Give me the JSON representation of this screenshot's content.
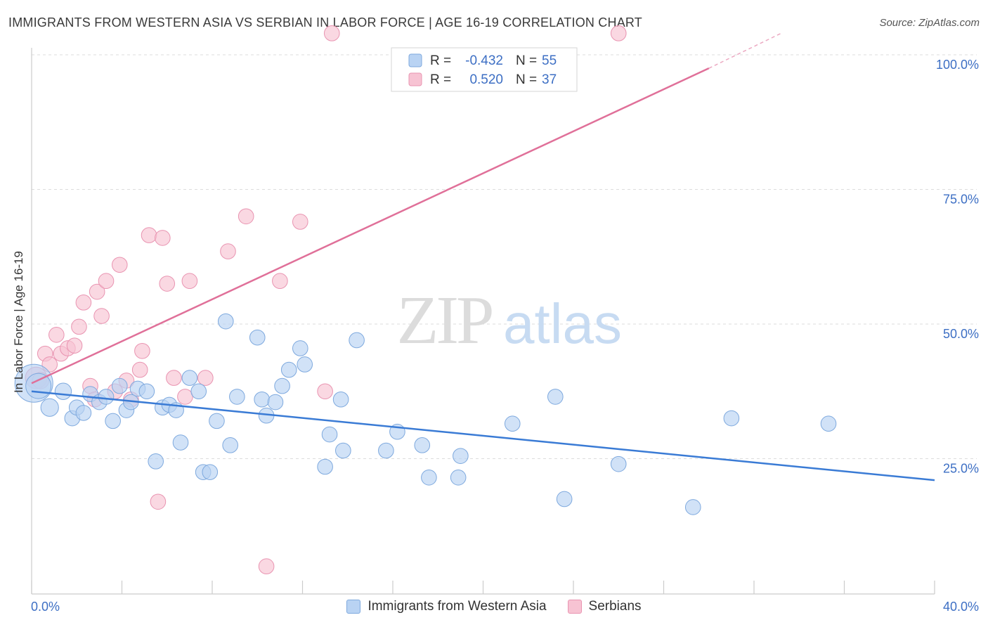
{
  "title": "IMMIGRANTS FROM WESTERN ASIA VS SERBIAN IN LABOR FORCE | AGE 16-19 CORRELATION CHART",
  "source": "Source: ZipAtlas.com",
  "watermark": {
    "zip": "ZIP",
    "atlas": "atlas"
  },
  "colors": {
    "blue_fill": "#b9d3f3",
    "blue_stroke": "#7ea9de",
    "blue_line": "#3a7bd5",
    "pink_fill": "#f7c3d3",
    "pink_stroke": "#e994b1",
    "pink_line": "#e07099",
    "tick_label": "#3d6fc4",
    "grid": "#dcdcdc"
  },
  "legend_top": {
    "rows": [
      {
        "r_label": "R =",
        "r_value": "-0.432",
        "n_label": "N =",
        "n_value": "55",
        "series": "blue"
      },
      {
        "r_label": "R =",
        "r_value": "0.520",
        "n_label": "N =",
        "n_value": "37",
        "series": "pink"
      }
    ]
  },
  "chart_data": {
    "type": "scatter",
    "title": "IMMIGRANTS FROM WESTERN ASIA VS SERBIAN IN LABOR FORCE | AGE 16-19 CORRELATION CHART",
    "xlabel": "",
    "ylabel": "In Labor Force | Age 16-19",
    "xlim": [
      0,
      40
    ],
    "ylim": [
      0,
      105
    ],
    "x_tick_labels": {
      "min": "0.0%",
      "max": "40.0%"
    },
    "y_ticks": [
      {
        "value": 25,
        "label": "25.0%"
      },
      {
        "value": 50,
        "label": "50.0%"
      },
      {
        "value": 75,
        "label": "75.0%"
      },
      {
        "value": 100,
        "label": "100.0%"
      }
    ],
    "grid": true,
    "legend_position": "bottom",
    "series": [
      {
        "name": "Immigrants from Western Asia",
        "color": "blue",
        "r": -0.432,
        "n": 55,
        "trend": {
          "x0": 0,
          "y0": 37.5,
          "x1": 40,
          "y1": 21
        },
        "points": [
          [
            0.1,
            39,
            3
          ],
          [
            0.3,
            38.5,
            2
          ],
          [
            0.8,
            34.5,
            1.4
          ],
          [
            1.4,
            37.5,
            1.3
          ],
          [
            1.8,
            32.5,
            1.2
          ],
          [
            2.0,
            34.5,
            1.2
          ],
          [
            2.3,
            33.5,
            1.2
          ],
          [
            2.6,
            37,
            1.2
          ],
          [
            3.0,
            35.5,
            1.2
          ],
          [
            3.3,
            36.5,
            1.2
          ],
          [
            3.6,
            32,
            1.2
          ],
          [
            3.9,
            38.5,
            1.2
          ],
          [
            4.2,
            34,
            1.2
          ],
          [
            4.4,
            35.5,
            1.2
          ],
          [
            4.7,
            38,
            1.2
          ],
          [
            5.1,
            37.5,
            1.2
          ],
          [
            5.5,
            24.5,
            1.2
          ],
          [
            5.8,
            34.5,
            1.2
          ],
          [
            6.1,
            35,
            1.2
          ],
          [
            6.4,
            34,
            1.2
          ],
          [
            6.6,
            28,
            1.2
          ],
          [
            7.0,
            40,
            1.2
          ],
          [
            7.4,
            37.5,
            1.2
          ],
          [
            7.6,
            22.5,
            1.2
          ],
          [
            7.9,
            22.5,
            1.2
          ],
          [
            8.2,
            32,
            1.2
          ],
          [
            8.6,
            50.5,
            1.2
          ],
          [
            8.8,
            27.5,
            1.2
          ],
          [
            9.1,
            36.5,
            1.2
          ],
          [
            10.0,
            47.5,
            1.2
          ],
          [
            10.2,
            36,
            1.2
          ],
          [
            10.4,
            33,
            1.2
          ],
          [
            10.8,
            35.5,
            1.2
          ],
          [
            11.1,
            38.5,
            1.2
          ],
          [
            11.4,
            41.5,
            1.2
          ],
          [
            11.9,
            45.5,
            1.2
          ],
          [
            12.1,
            42.5,
            1.2
          ],
          [
            13.0,
            23.5,
            1.2
          ],
          [
            13.2,
            29.5,
            1.2
          ],
          [
            13.7,
            36,
            1.2
          ],
          [
            13.8,
            26.5,
            1.2
          ],
          [
            14.4,
            47,
            1.2
          ],
          [
            15.7,
            26.5,
            1.2
          ],
          [
            16.2,
            30,
            1.2
          ],
          [
            17.3,
            27.5,
            1.2
          ],
          [
            17.6,
            21.5,
            1.2
          ],
          [
            18.9,
            21.5,
            1.2
          ],
          [
            19.0,
            25.5,
            1.2
          ],
          [
            21.3,
            31.5,
            1.2
          ],
          [
            23.2,
            36.5,
            1.2
          ],
          [
            23.6,
            17.5,
            1.2
          ],
          [
            26.0,
            24,
            1.2
          ],
          [
            35.3,
            31.5,
            1.2
          ],
          [
            29.3,
            16,
            1.2
          ],
          [
            31.0,
            32.5,
            1.2
          ]
        ]
      },
      {
        "name": "Serbians",
        "color": "pink",
        "r": 0.52,
        "n": 37,
        "trend": {
          "x0": 0,
          "y0": 39,
          "x1": 30,
          "y1": 97.5,
          "dash_to_x": 33.2,
          "dash_to_y": 104
        },
        "points": [
          [
            0.2,
            40,
            1.7
          ],
          [
            0.4,
            39.5,
            1.3
          ],
          [
            0.6,
            44.5,
            1.2
          ],
          [
            0.8,
            42.5,
            1.2
          ],
          [
            1.1,
            48,
            1.2
          ],
          [
            1.3,
            44.5,
            1.2
          ],
          [
            1.6,
            45.5,
            1.2
          ],
          [
            1.9,
            46,
            1.2
          ],
          [
            2.1,
            49.5,
            1.2
          ],
          [
            2.3,
            54,
            1.2
          ],
          [
            2.6,
            38.5,
            1.2
          ],
          [
            2.8,
            36,
            1.2
          ],
          [
            2.9,
            56,
            1.2
          ],
          [
            3.1,
            51.5,
            1.2
          ],
          [
            3.3,
            58,
            1.2
          ],
          [
            3.7,
            37.5,
            1.2
          ],
          [
            3.9,
            61,
            1.2
          ],
          [
            4.2,
            39.5,
            1.2
          ],
          [
            4.4,
            36,
            1.2
          ],
          [
            4.8,
            41.5,
            1.2
          ],
          [
            4.9,
            45,
            1.2
          ],
          [
            5.2,
            66.5,
            1.2
          ],
          [
            5.6,
            17,
            1.2
          ],
          [
            5.8,
            66,
            1.2
          ],
          [
            6.0,
            57.5,
            1.2
          ],
          [
            6.3,
            40,
            1.2
          ],
          [
            6.8,
            36.5,
            1.2
          ],
          [
            7.0,
            58,
            1.2
          ],
          [
            7.7,
            40,
            1.2
          ],
          [
            8.7,
            63.5,
            1.2
          ],
          [
            9.5,
            70,
            1.2
          ],
          [
            10.4,
            5,
            1.2
          ],
          [
            11.0,
            58,
            1.2
          ],
          [
            11.9,
            69,
            1.2
          ],
          [
            13.3,
            104,
            1.2
          ],
          [
            13.0,
            37.5,
            1.2
          ],
          [
            26.0,
            104,
            1.2
          ]
        ]
      }
    ]
  }
}
